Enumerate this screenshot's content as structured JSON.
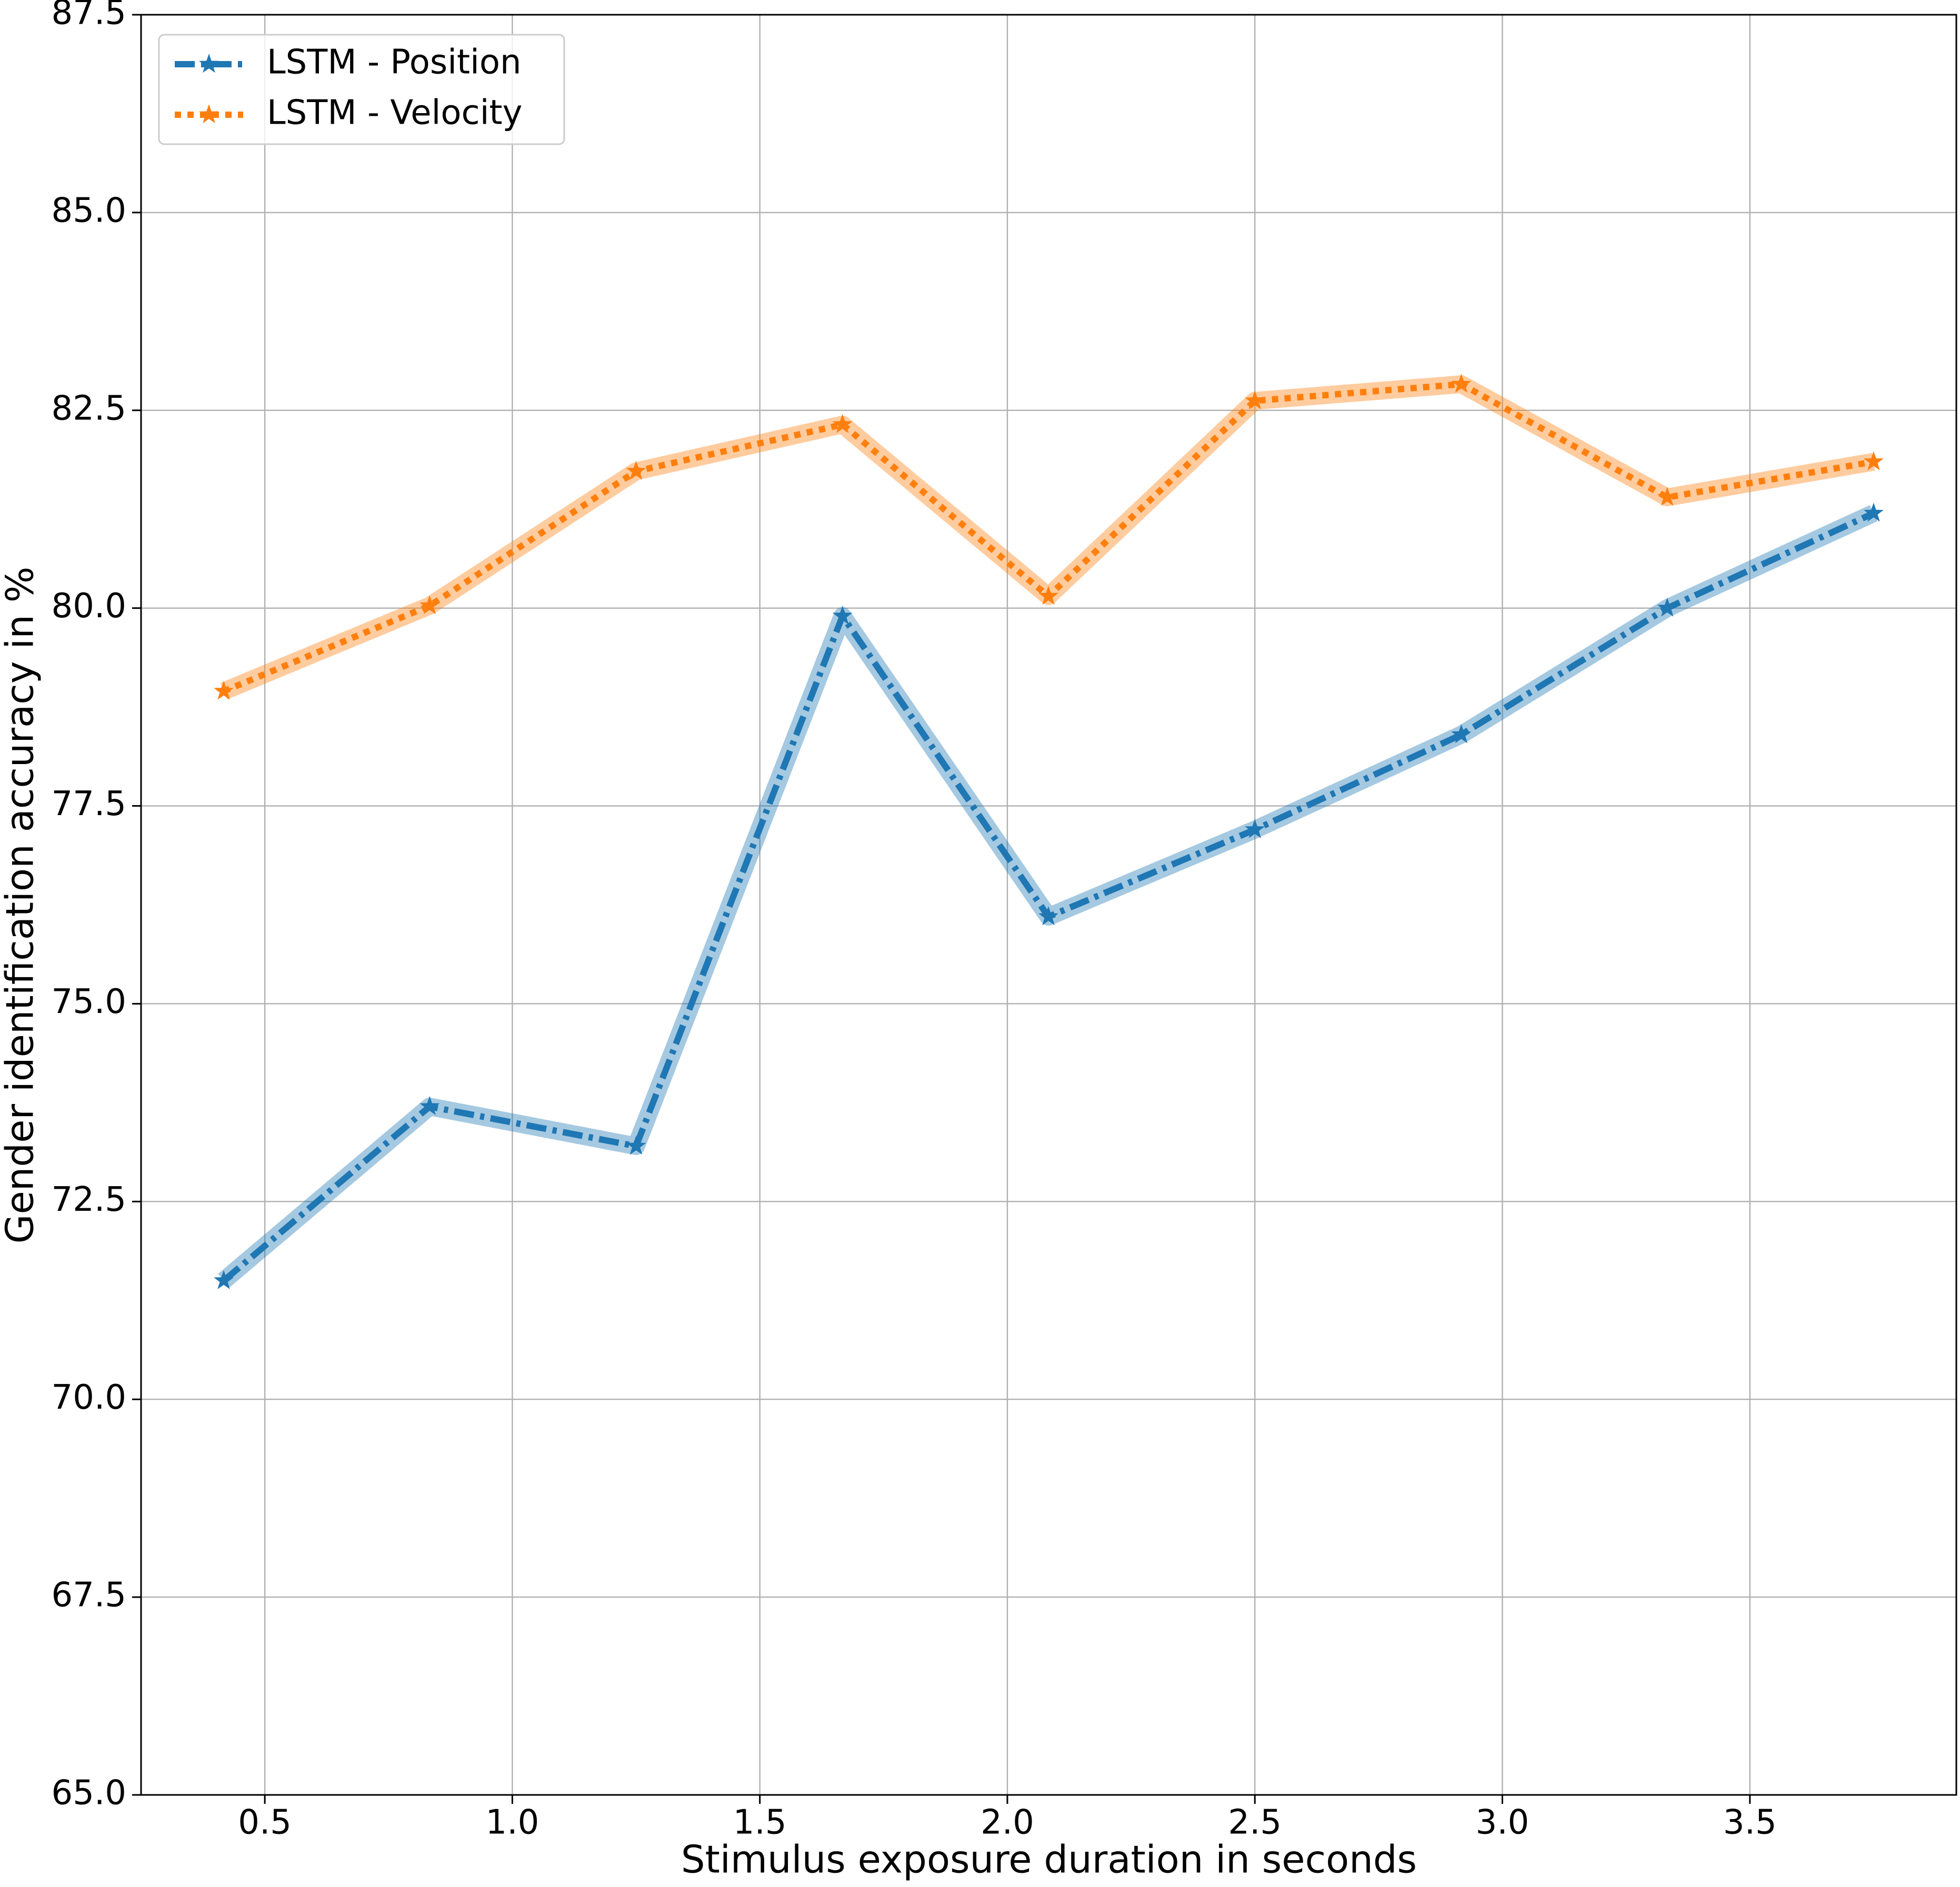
{
  "chart_data": {
    "type": "line",
    "xlabel": "Stimulus exposure duration in seconds",
    "ylabel": "Gender identification accuracy in %",
    "x": [
      0.417,
      0.833,
      1.25,
      1.667,
      2.083,
      2.5,
      2.917,
      3.333,
      3.75
    ],
    "series": [
      {
        "name": "LSTM - Position",
        "color": "#1f77b4",
        "linestyle": "dashdot",
        "values": [
          71.5,
          73.7,
          73.2,
          79.9,
          76.1,
          77.2,
          78.4,
          80.0,
          81.2
        ]
      },
      {
        "name": "LSTM - Velocity",
        "color": "#ff7f0e",
        "linestyle": "dotted",
        "values": [
          78.95,
          80.03,
          81.73,
          82.32,
          80.15,
          82.62,
          82.83,
          81.4,
          81.85
        ]
      }
    ],
    "xlim": [
      0.25,
      3.917
    ],
    "ylim": [
      65,
      87.5
    ],
    "xticks": [
      0.5,
      {
        "value": 1,
        "label": "1.0"
      },
      1.5,
      {
        "value": 2,
        "label": "2.0"
      },
      2.5,
      {
        "value": 3,
        "label": "3.0"
      },
      3.5
    ],
    "yticks": [
      {
        "value": 65,
        "label": "65.0"
      },
      67.5,
      {
        "value": 70,
        "label": "70.0"
      },
      72.5,
      {
        "value": 75,
        "label": "75.0"
      },
      77.5,
      {
        "value": 80,
        "label": "80.0"
      },
      82.5,
      {
        "value": 85,
        "label": "85.0"
      },
      87.5
    ],
    "grid": true,
    "legend": "upper left"
  }
}
